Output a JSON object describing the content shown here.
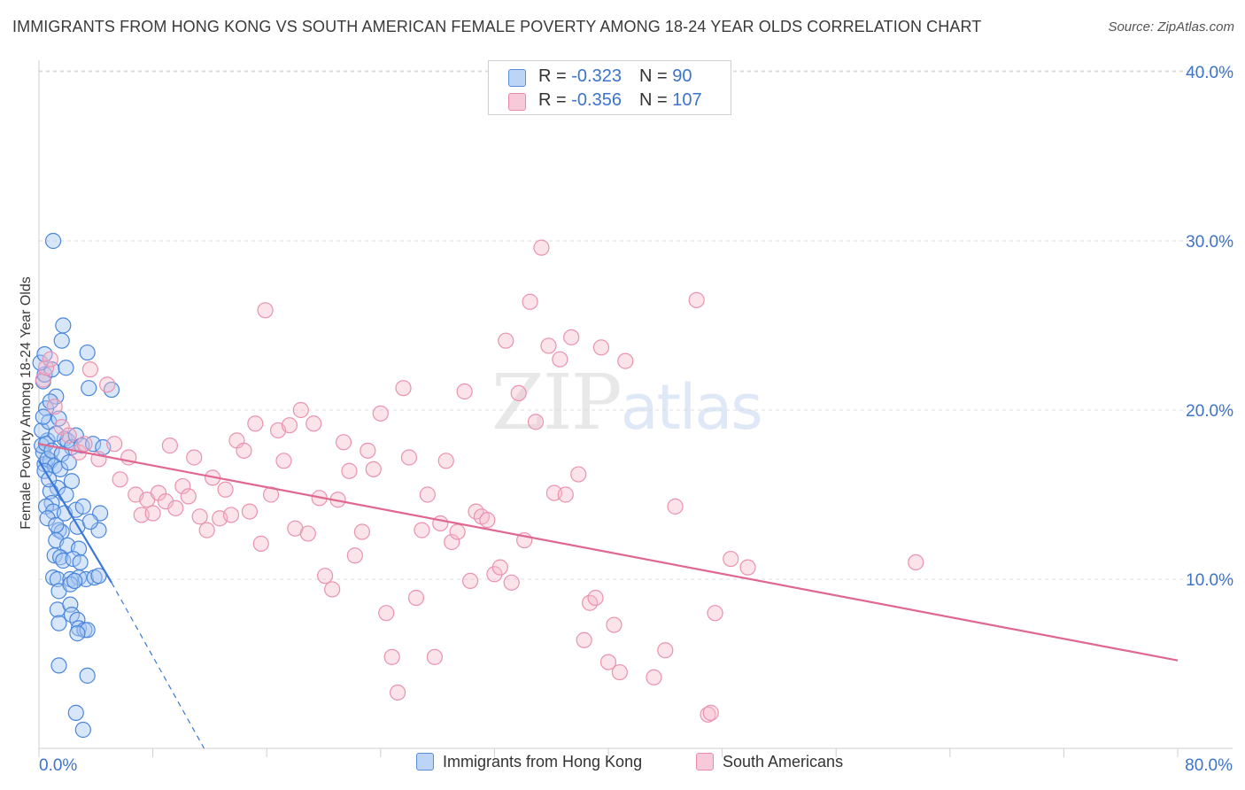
{
  "title": "IMMIGRANTS FROM HONG KONG VS SOUTH AMERICAN FEMALE POVERTY AMONG 18-24 YEAR OLDS CORRELATION CHART",
  "source": "Source: ZipAtlas.com",
  "watermark": {
    "zip": "ZIP",
    "atlas": "atlas"
  },
  "legend": {
    "row1": {
      "r_label": "R = ",
      "r_value": "-0.323",
      "n_label": "N = ",
      "n_value": " 90"
    },
    "row2": {
      "r_label": "R = ",
      "r_value": "-0.356",
      "n_label": "N = ",
      "n_value": "107"
    }
  },
  "colors": {
    "blue": "#3b78d6",
    "blue_fill": "#a9c8f2",
    "pink": "#e0678f",
    "pink_fill": "#f5b8cb",
    "accent_text": "#3c74c9"
  },
  "chart_data": {
    "type": "scatter",
    "title": "IMMIGRANTS FROM HONG KONG VS SOUTH AMERICAN FEMALE POVERTY AMONG 18-24 YEAR OLDS CORRELATION CHART",
    "xlabel": "",
    "ylabel": "Female Poverty Among 18-24 Year Olds",
    "xlim": [
      0,
      80
    ],
    "ylim": [
      0,
      40
    ],
    "x_tick_labels": [
      {
        "value": 0,
        "label": "0.0%"
      },
      {
        "value": 80,
        "label": "80.0%"
      }
    ],
    "y_tick_labels": [
      {
        "value": 10,
        "label": "10.0%"
      },
      {
        "value": 20,
        "label": "20.0%"
      },
      {
        "value": 30,
        "label": "30.0%"
      },
      {
        "value": 40,
        "label": "40.0%"
      }
    ],
    "legend_position": "bottom",
    "series": [
      {
        "name": "Immigrants from Hong Kong",
        "color": "#3b78d6",
        "R": -0.323,
        "N": 90,
        "trend": {
          "x0": 0,
          "y0": 17.0,
          "x1": 5.1,
          "y1": 9.8,
          "dashed_to": {
            "x": 11.6,
            "y": 0.0
          }
        },
        "points": [
          [
            0.3,
            17.5
          ],
          [
            0.6,
            18.2
          ],
          [
            0.4,
            16.8
          ],
          [
            0.8,
            17.0
          ],
          [
            0.2,
            18.8
          ],
          [
            0.5,
            20.1
          ],
          [
            0.7,
            19.3
          ],
          [
            0.3,
            21.7
          ],
          [
            0.4,
            22.1
          ],
          [
            0.9,
            22.4
          ],
          [
            1.0,
            30.0
          ],
          [
            1.7,
            25.0
          ],
          [
            1.6,
            24.1
          ],
          [
            1.9,
            22.5
          ],
          [
            3.4,
            23.4
          ],
          [
            3.5,
            21.3
          ],
          [
            5.1,
            21.2
          ],
          [
            1.2,
            20.8
          ],
          [
            1.4,
            19.5
          ],
          [
            1.8,
            18.3
          ],
          [
            2.0,
            18.2
          ],
          [
            2.3,
            17.8
          ],
          [
            2.6,
            18.5
          ],
          [
            3.0,
            17.9
          ],
          [
            3.8,
            18.0
          ],
          [
            4.5,
            17.8
          ],
          [
            0.6,
            17.1
          ],
          [
            1.1,
            16.7
          ],
          [
            1.5,
            16.5
          ],
          [
            2.3,
            15.8
          ],
          [
            1.3,
            15.4
          ],
          [
            1.9,
            15.0
          ],
          [
            0.8,
            15.2
          ],
          [
            0.9,
            14.5
          ],
          [
            0.5,
            14.3
          ],
          [
            1.0,
            14.0
          ],
          [
            1.8,
            13.9
          ],
          [
            2.6,
            14.1
          ],
          [
            3.1,
            14.3
          ],
          [
            4.3,
            13.9
          ],
          [
            1.4,
            12.9
          ],
          [
            1.6,
            12.8
          ],
          [
            2.7,
            13.1
          ],
          [
            4.2,
            12.9
          ],
          [
            1.2,
            12.3
          ],
          [
            2.0,
            12.0
          ],
          [
            2.8,
            11.8
          ],
          [
            1.1,
            11.4
          ],
          [
            1.5,
            11.3
          ],
          [
            1.7,
            11.1
          ],
          [
            2.4,
            11.2
          ],
          [
            2.9,
            11.0
          ],
          [
            1.0,
            10.1
          ],
          [
            1.3,
            10.0
          ],
          [
            2.2,
            10.0
          ],
          [
            2.8,
            10.1
          ],
          [
            3.3,
            10.0
          ],
          [
            3.9,
            10.1
          ],
          [
            4.2,
            10.2
          ],
          [
            1.4,
            9.3
          ],
          [
            2.2,
            9.7
          ],
          [
            2.5,
            9.9
          ],
          [
            1.3,
            8.2
          ],
          [
            2.2,
            8.5
          ],
          [
            2.3,
            7.9
          ],
          [
            2.7,
            7.6
          ],
          [
            1.4,
            7.4
          ],
          [
            2.8,
            7.1
          ],
          [
            3.2,
            7.0
          ],
          [
            3.4,
            7.0
          ],
          [
            2.7,
            6.8
          ],
          [
            1.4,
            4.9
          ],
          [
            3.4,
            4.3
          ],
          [
            2.6,
            2.1
          ],
          [
            3.1,
            1.1
          ],
          [
            0.4,
            16.4
          ],
          [
            0.7,
            15.9
          ],
          [
            0.2,
            17.9
          ],
          [
            0.5,
            18.0
          ],
          [
            0.9,
            17.6
          ],
          [
            1.6,
            17.4
          ],
          [
            2.1,
            16.9
          ],
          [
            0.6,
            13.6
          ],
          [
            1.2,
            13.2
          ],
          [
            3.6,
            13.4
          ],
          [
            0.3,
            19.6
          ],
          [
            0.8,
            20.5
          ],
          [
            1.2,
            18.6
          ],
          [
            0.1,
            22.8
          ],
          [
            0.4,
            23.3
          ]
        ]
      },
      {
        "name": "South Americans",
        "color": "#e0678f",
        "R": -0.356,
        "N": 107,
        "trend": {
          "x0": 0,
          "y0": 18.0,
          "x1": 80,
          "y1": 5.2
        },
        "points": [
          [
            0.3,
            21.8
          ],
          [
            0.5,
            22.5
          ],
          [
            0.8,
            23.0
          ],
          [
            1.1,
            20.2
          ],
          [
            1.6,
            19.0
          ],
          [
            2.1,
            18.5
          ],
          [
            2.8,
            17.5
          ],
          [
            3.2,
            18.0
          ],
          [
            3.6,
            22.4
          ],
          [
            4.8,
            21.5
          ],
          [
            4.2,
            17.1
          ],
          [
            5.3,
            18.0
          ],
          [
            5.7,
            15.9
          ],
          [
            6.3,
            17.2
          ],
          [
            6.8,
            15.0
          ],
          [
            7.2,
            13.8
          ],
          [
            7.6,
            14.7
          ],
          [
            8.0,
            13.9
          ],
          [
            8.4,
            15.1
          ],
          [
            8.9,
            14.6
          ],
          [
            9.2,
            17.9
          ],
          [
            9.6,
            14.2
          ],
          [
            10.1,
            15.5
          ],
          [
            10.5,
            14.9
          ],
          [
            10.9,
            17.2
          ],
          [
            11.3,
            13.7
          ],
          [
            11.8,
            12.9
          ],
          [
            12.2,
            16.0
          ],
          [
            12.7,
            13.6
          ],
          [
            13.1,
            15.3
          ],
          [
            13.5,
            13.8
          ],
          [
            13.9,
            18.2
          ],
          [
            14.4,
            17.6
          ],
          [
            14.8,
            14.0
          ],
          [
            15.2,
            19.2
          ],
          [
            15.6,
            12.1
          ],
          [
            15.9,
            25.9
          ],
          [
            16.3,
            15.0
          ],
          [
            16.8,
            18.8
          ],
          [
            17.2,
            17.0
          ],
          [
            17.6,
            19.1
          ],
          [
            18.0,
            13.0
          ],
          [
            18.4,
            20.0
          ],
          [
            18.9,
            12.7
          ],
          [
            19.3,
            19.2
          ],
          [
            19.7,
            14.8
          ],
          [
            20.1,
            10.2
          ],
          [
            20.6,
            9.4
          ],
          [
            21.0,
            14.7
          ],
          [
            21.4,
            18.1
          ],
          [
            21.8,
            16.4
          ],
          [
            22.2,
            11.4
          ],
          [
            22.7,
            12.8
          ],
          [
            23.1,
            17.6
          ],
          [
            23.5,
            16.5
          ],
          [
            24.0,
            19.8
          ],
          [
            24.4,
            8.0
          ],
          [
            24.8,
            5.4
          ],
          [
            25.2,
            3.3
          ],
          [
            25.6,
            21.3
          ],
          [
            26.0,
            17.2
          ],
          [
            26.5,
            8.9
          ],
          [
            26.9,
            12.9
          ],
          [
            27.3,
            15.0
          ],
          [
            27.8,
            5.4
          ],
          [
            28.2,
            13.3
          ],
          [
            28.6,
            17.0
          ],
          [
            29.0,
            12.2
          ],
          [
            29.4,
            12.8
          ],
          [
            29.9,
            21.1
          ],
          [
            30.3,
            9.9
          ],
          [
            30.7,
            14.0
          ],
          [
            31.1,
            13.7
          ],
          [
            31.5,
            13.5
          ],
          [
            32.0,
            10.3
          ],
          [
            32.4,
            10.7
          ],
          [
            32.8,
            24.1
          ],
          [
            33.2,
            9.8
          ],
          [
            33.7,
            21.0
          ],
          [
            34.1,
            12.3
          ],
          [
            34.5,
            26.4
          ],
          [
            34.9,
            19.3
          ],
          [
            35.3,
            29.6
          ],
          [
            35.8,
            23.8
          ],
          [
            36.2,
            15.1
          ],
          [
            36.6,
            23.0
          ],
          [
            37.0,
            15.0
          ],
          [
            37.4,
            24.3
          ],
          [
            37.9,
            16.2
          ],
          [
            38.3,
            6.4
          ],
          [
            38.7,
            8.6
          ],
          [
            39.1,
            8.9
          ],
          [
            39.5,
            23.7
          ],
          [
            40.0,
            5.1
          ],
          [
            40.4,
            7.3
          ],
          [
            40.8,
            4.5
          ],
          [
            41.2,
            22.9
          ],
          [
            43.2,
            4.2
          ],
          [
            44.0,
            5.8
          ],
          [
            44.7,
            14.3
          ],
          [
            46.2,
            26.5
          ],
          [
            47.0,
            2.0
          ],
          [
            47.5,
            8.0
          ],
          [
            47.2,
            2.1
          ],
          [
            48.6,
            11.2
          ],
          [
            49.8,
            10.7
          ],
          [
            61.6,
            11.0
          ]
        ]
      }
    ]
  },
  "bottom_legend": {
    "series1": "Immigrants from Hong Kong",
    "series2": "South Americans"
  }
}
